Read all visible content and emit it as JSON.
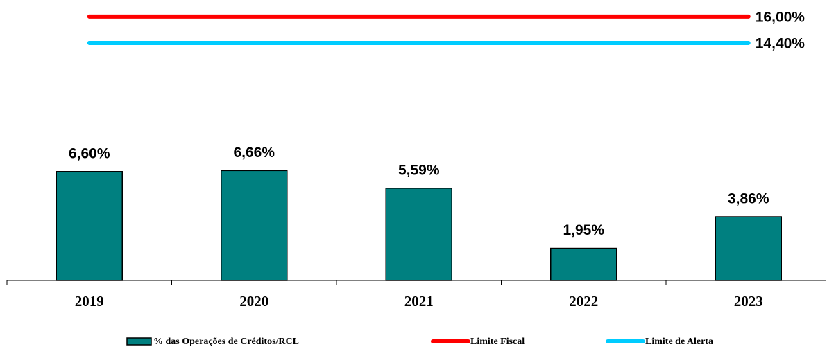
{
  "chart_data": {
    "type": "bar",
    "categories": [
      "2019",
      "2020",
      "2021",
      "2022",
      "2023"
    ],
    "ylim": [
      0,
      17
    ],
    "series": [
      {
        "name": "% das Operações de Créditos/RCL",
        "type": "bar",
        "color": "#008080",
        "values": [
          6.6,
          6.66,
          5.59,
          1.95,
          3.86
        ],
        "value_labels": [
          "6,60%",
          "6,66%",
          "5,59%",
          "1,95%",
          "3,86%"
        ]
      },
      {
        "name": "Limite Fiscal",
        "type": "line",
        "color": "#ff0000",
        "values": [
          16.0,
          16.0,
          16.0,
          16.0,
          16.0
        ],
        "value_labels": [
          null,
          null,
          null,
          null,
          "16,00%"
        ]
      },
      {
        "name": "Limite de Alerta",
        "type": "line",
        "color": "#00ccff",
        "values": [
          14.4,
          14.4,
          14.4,
          14.4,
          14.4
        ],
        "value_labels": [
          null,
          null,
          null,
          null,
          "14,40%"
        ]
      }
    ]
  }
}
